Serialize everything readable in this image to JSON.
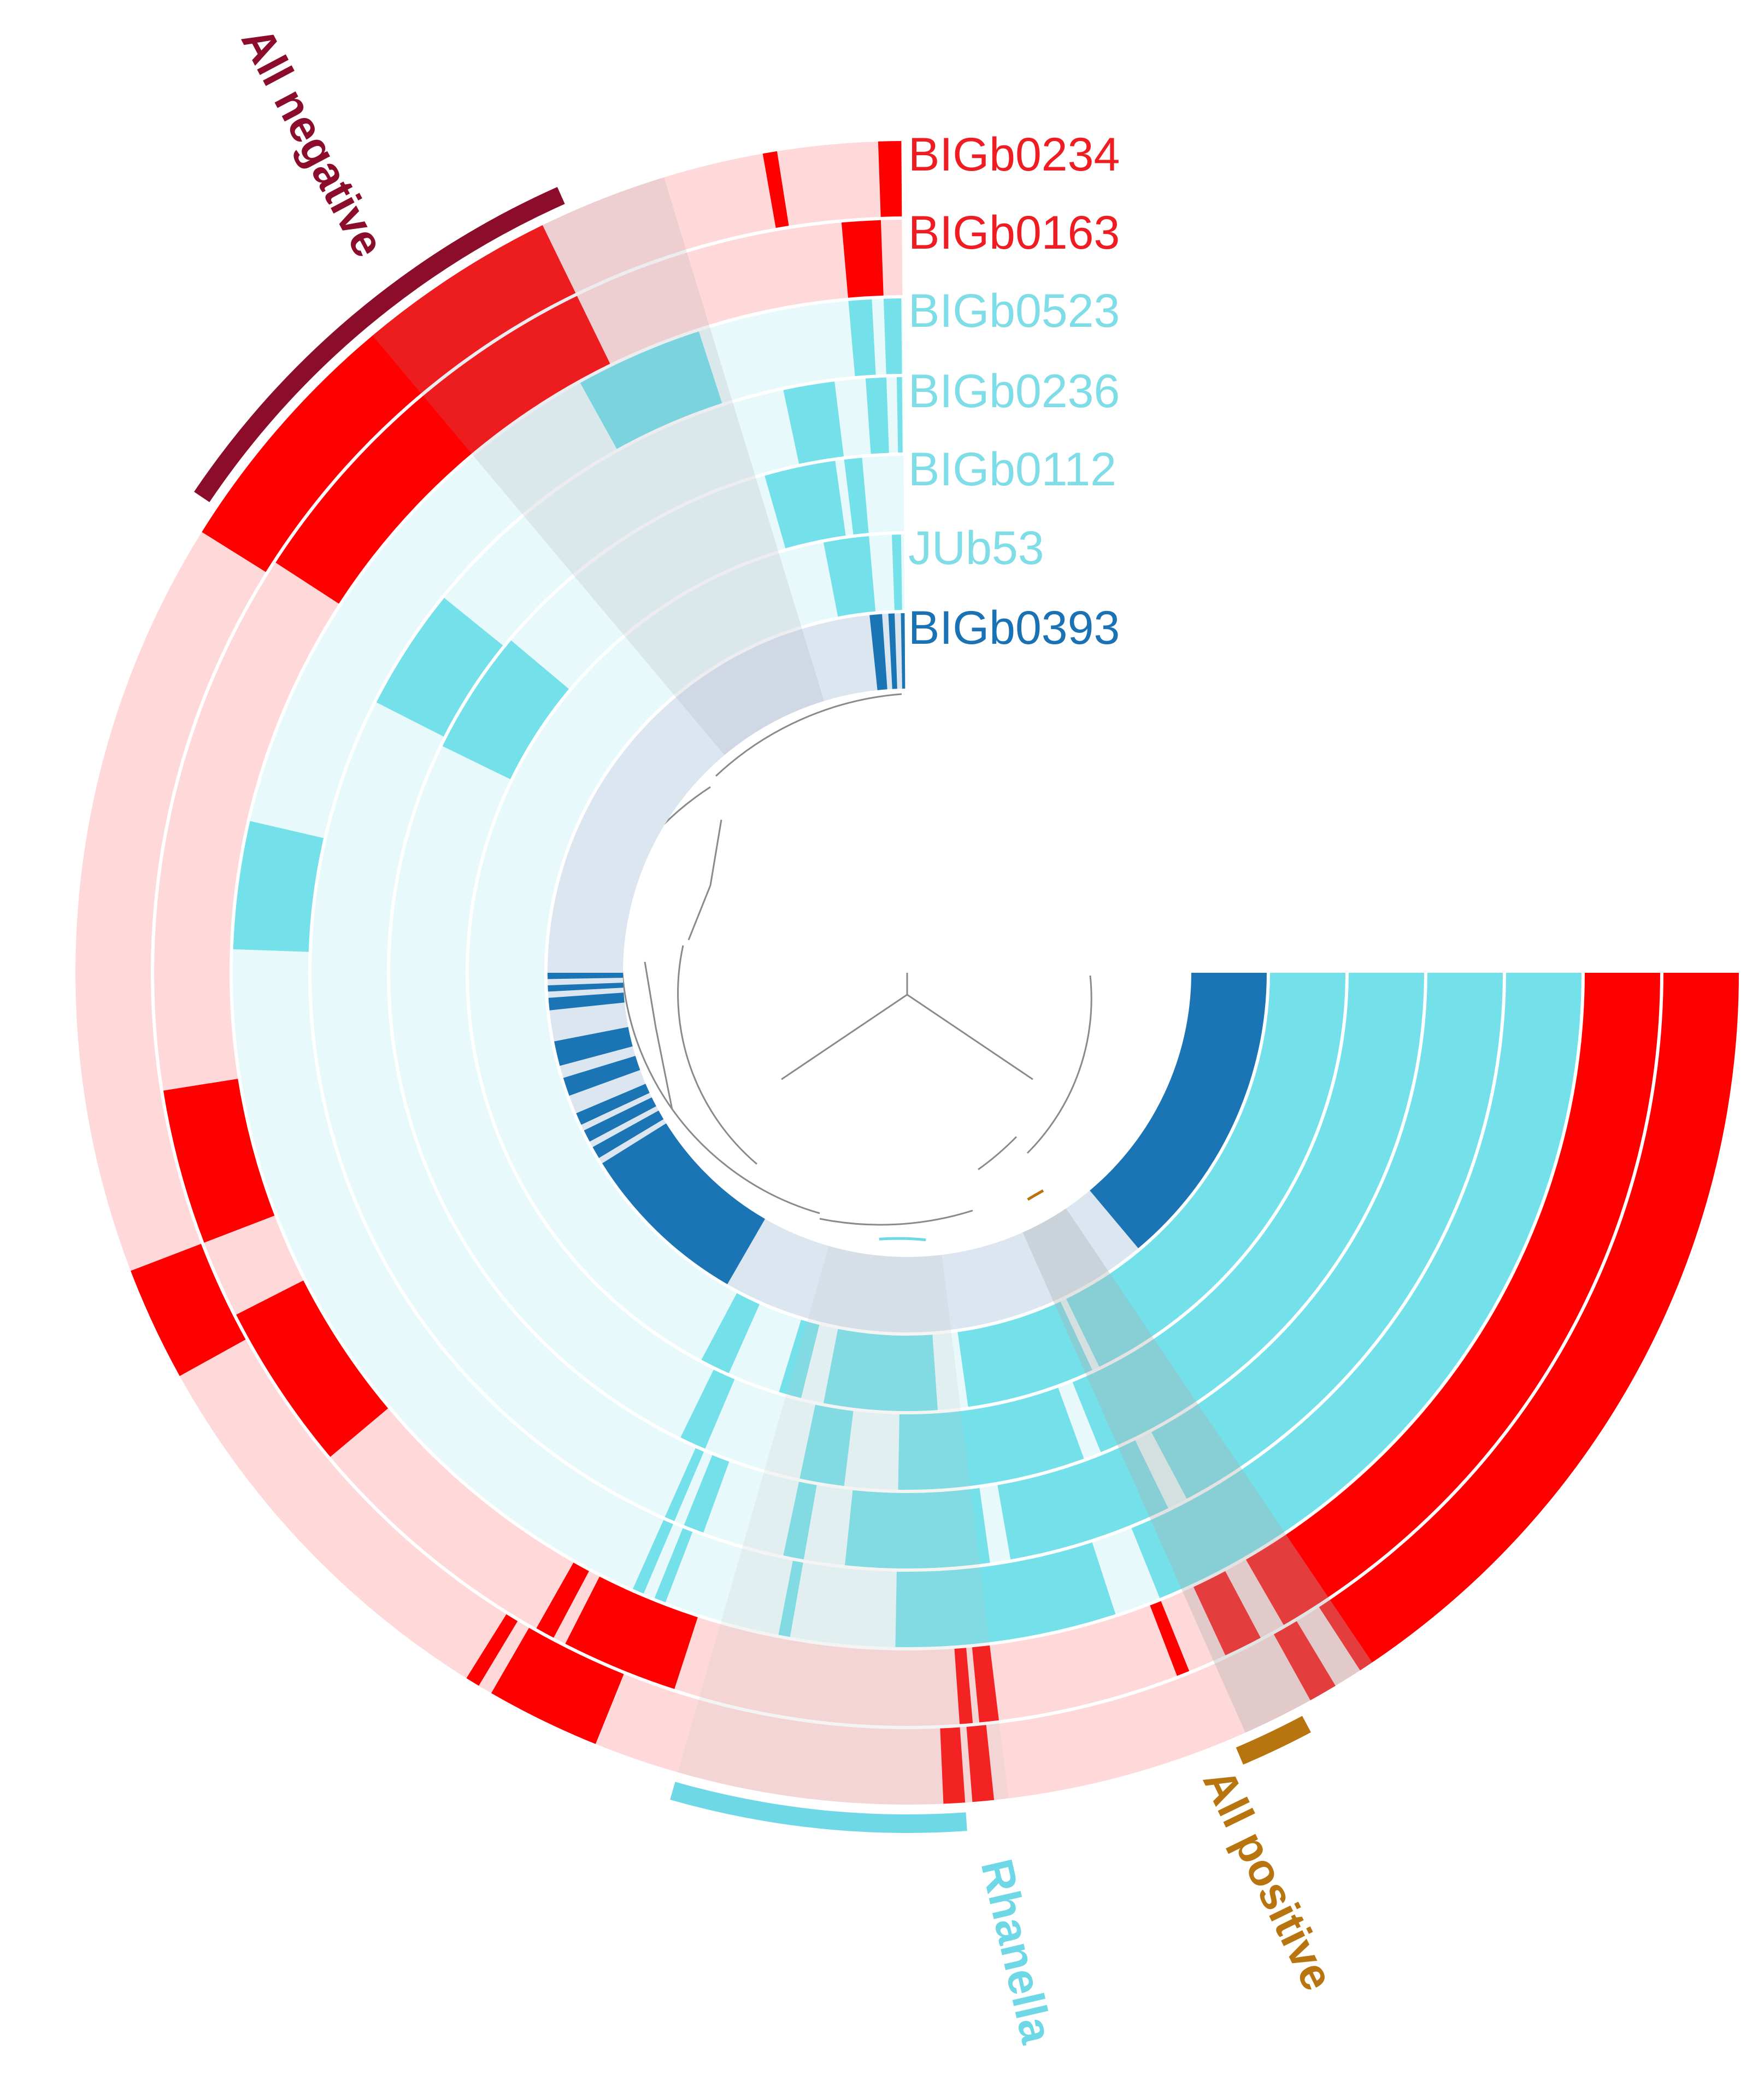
{
  "figure": {
    "ring_labels": [
      {
        "text": "BIGb0234",
        "color": "#ef1c21"
      },
      {
        "text": "BIGb0163",
        "color": "#ef1c21"
      },
      {
        "text": "BIGb0523",
        "color": "#7fdde8"
      },
      {
        "text": "BIGb0236",
        "color": "#7fdde8"
      },
      {
        "text": "BIGb0112",
        "color": "#7fdde8"
      },
      {
        "text": "JUb53",
        "color": "#7fdde8"
      },
      {
        "text": "BIGb0393",
        "color": "#1a71b3"
      }
    ],
    "clade_labels": {
      "all_negative": {
        "text": "All negative",
        "color": "#8b0d2b"
      },
      "rhanella": {
        "text": "Rhanella",
        "color": "#6fd8e6"
      },
      "all_positive": {
        "text": "All positive",
        "color": "#b8740e"
      }
    }
  },
  "colors": {
    "red_pos": "#ff0000",
    "red_neg": "#ffd9d9",
    "cyan_pos": "#74e0ea",
    "cyan_neg": "#e8f9fb",
    "blue_pos": "#1b74b4",
    "blue_neg": "#dbe6f1",
    "band_grey": "#9a9aaa",
    "tree_line": "#8a8a8a"
  }
}
